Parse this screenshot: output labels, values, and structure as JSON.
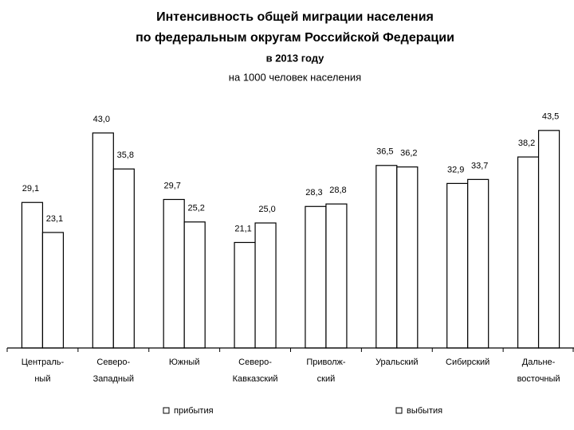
{
  "chart_data": {
    "type": "bar",
    "title": [
      "Интенсивность общей миграции населения",
      "по федеральным округам Российской Федерации",
      "в 2013 году"
    ],
    "subtitle": "на 1000 человек населения",
    "categories": [
      [
        "Централь-",
        "ный"
      ],
      [
        "Северо-",
        "Западный"
      ],
      [
        "Южный"
      ],
      [
        "Северо-",
        "Кавказский"
      ],
      [
        "Приволж-",
        "ский"
      ],
      [
        "Уральский"
      ],
      [
        "Сибирский"
      ],
      [
        "Дальне-",
        "восточный"
      ]
    ],
    "series": [
      {
        "name": "прибытия",
        "color": "#ffffff",
        "values": [
          29.1,
          43.0,
          29.7,
          21.1,
          28.3,
          36.5,
          32.9,
          38.2
        ],
        "value_labels": [
          "29,1",
          "43,0",
          "29,7",
          "21,1",
          "28,3",
          "36,5",
          "32,9",
          "38,2"
        ]
      },
      {
        "name": "выбытия",
        "color": "#ffffff",
        "values": [
          23.1,
          35.8,
          25.2,
          25.0,
          28.8,
          36.2,
          33.7,
          43.5
        ],
        "value_labels": [
          "23,1",
          "35,8",
          "25,2",
          "25,0",
          "28,8",
          "36,2",
          "33,7",
          "43,5"
        ]
      }
    ]
  }
}
